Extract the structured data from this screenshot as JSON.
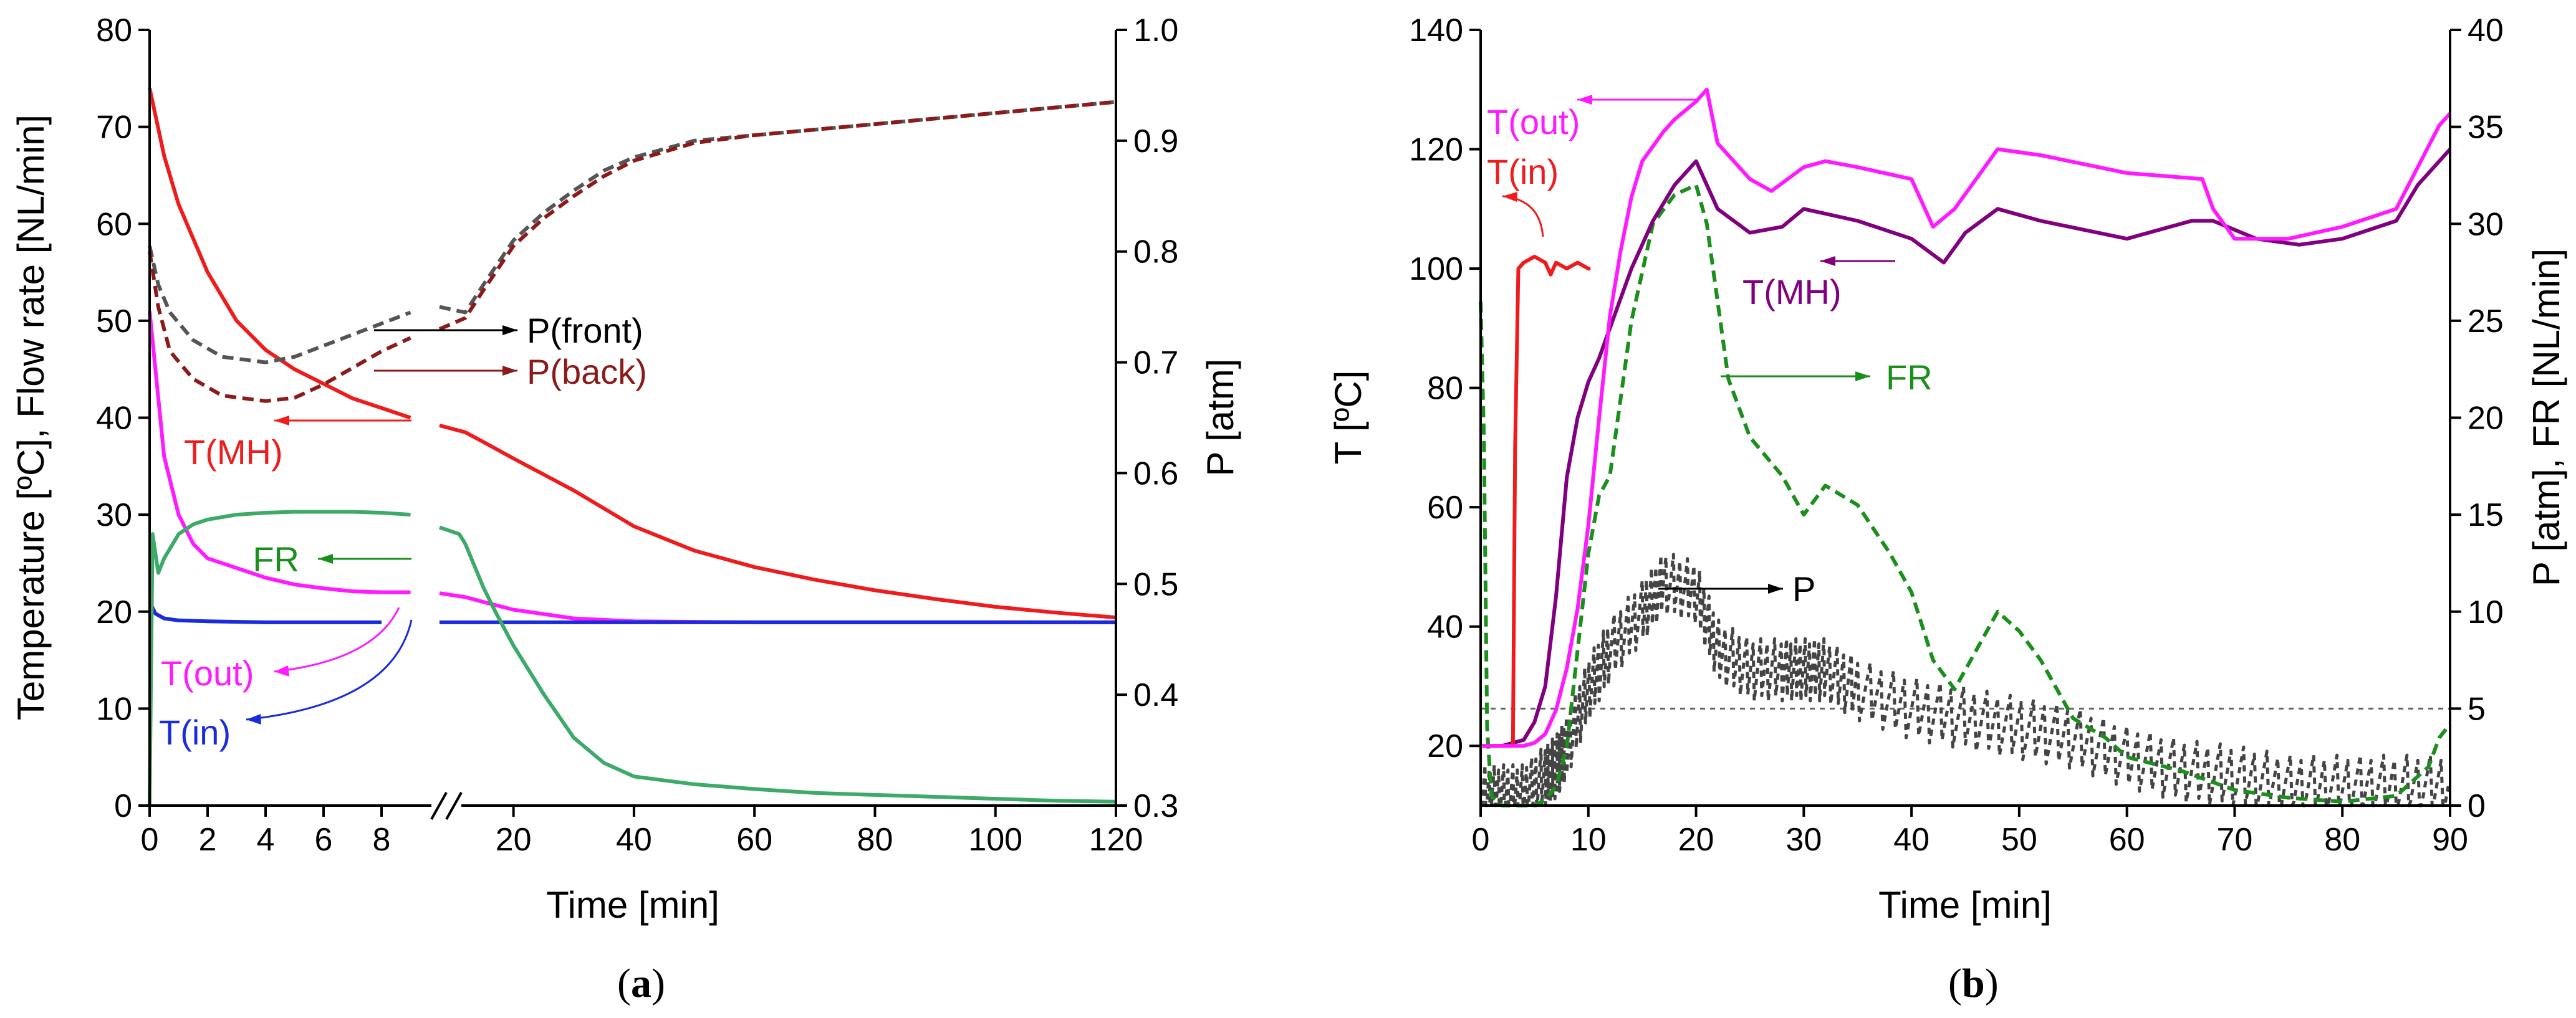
{
  "chart_data": [
    {
      "panel": "(a)",
      "panel_prefix": "(",
      "panel_letter": "a",
      "panel_suffix": ")",
      "type": "line",
      "xlabel": "Time [min]",
      "ylabel_left": "Temperature [ºC], Flow rate [NL/min]",
      "ylabel_right": "P [atm]",
      "x_axis": {
        "broken": true,
        "segment1": {
          "range": [
            0,
            10
          ],
          "ticks": [
            0,
            2,
            4,
            6,
            8
          ]
        },
        "segment2": {
          "range": [
            10,
            120
          ],
          "ticks": [
            20,
            40,
            60,
            80,
            100,
            120
          ]
        }
      },
      "ylim_left": [
        0,
        80
      ],
      "yticks_left": [
        0,
        10,
        20,
        30,
        40,
        50,
        60,
        70,
        80
      ],
      "ylim_right": [
        0.3,
        1.0
      ],
      "yticks_right": [
        "0.3",
        "0.4",
        "0.5",
        "0.6",
        "0.7",
        "0.8",
        "0.9",
        "1.0"
      ],
      "series": [
        {
          "name": "T(MH)",
          "axis": "left",
          "color": "#ee1c1c",
          "style": "solid",
          "x": [
            0,
            0.5,
            1,
            2,
            3,
            4,
            5,
            6,
            7,
            8,
            9,
            10,
            12,
            15,
            20,
            30,
            40,
            50,
            60,
            70,
            80,
            90,
            100,
            110,
            120
          ],
          "y": [
            74,
            67,
            62,
            55,
            50,
            47,
            45,
            43.5,
            42,
            41,
            40,
            39.2,
            38.5,
            37.5,
            35.8,
            32.5,
            28.8,
            26.3,
            24.6,
            23.3,
            22.2,
            21.3,
            20.5,
            19.9,
            19.4
          ]
        },
        {
          "name": "T(out)",
          "axis": "left",
          "color": "#ff1aff",
          "style": "solid",
          "x": [
            0,
            0.2,
            0.5,
            1,
            1.5,
            2,
            3,
            4,
            5,
            6,
            7,
            8,
            9,
            10,
            12,
            15,
            20,
            30,
            40,
            60,
            80,
            100,
            120
          ],
          "y": [
            51,
            45,
            36,
            30,
            27,
            25.5,
            24.5,
            23.5,
            22.8,
            22.4,
            22.1,
            22,
            22,
            21.9,
            21.5,
            21,
            20.2,
            19.3,
            19,
            18.9,
            18.9,
            18.9,
            18.9
          ]
        },
        {
          "name": "T(in)",
          "axis": "left",
          "color": "#1a2bdb",
          "style": "solid",
          "x": [
            0,
            0.2,
            0.5,
            1,
            2,
            4,
            6,
            8,
            10,
            20,
            40,
            60,
            80,
            100,
            120
          ],
          "y": [
            21,
            19.8,
            19.3,
            19.1,
            19,
            18.9,
            18.9,
            18.9,
            18.9,
            18.9,
            18.9,
            18.9,
            18.9,
            18.9,
            18.9
          ]
        },
        {
          "name": "FR",
          "axis": "left",
          "color": "#3daa6a",
          "style": "solid",
          "x": [
            0,
            0.1,
            0.3,
            0.5,
            1,
            1.5,
            2,
            3,
            4,
            5,
            6,
            7,
            8,
            9,
            10,
            11,
            12,
            13,
            14,
            15,
            17,
            20,
            25,
            30,
            35,
            40,
            50,
            60,
            70,
            80,
            90,
            100,
            110,
            120
          ],
          "y": [
            0,
            28,
            24,
            25.5,
            28,
            29,
            29.5,
            30,
            30.2,
            30.3,
            30.3,
            30.3,
            30.2,
            30,
            28.7,
            28,
            27,
            25.5,
            24,
            22.5,
            20,
            16.5,
            11.5,
            7,
            4.4,
            3,
            2.2,
            1.7,
            1.3,
            1.1,
            0.9,
            0.7,
            0.5,
            0.4
          ]
        },
        {
          "name": "P(front)",
          "axis": "right",
          "color": "#555555",
          "style": "dashed",
          "x": [
            0,
            0.3,
            0.7,
            1.5,
            2.5,
            4,
            5,
            6,
            7,
            8,
            9,
            10,
            12,
            15,
            20,
            25,
            30,
            35,
            40,
            50,
            60,
            70,
            80,
            90,
            100,
            110,
            120
          ],
          "y": [
            0.805,
            0.77,
            0.745,
            0.72,
            0.705,
            0.7,
            0.705,
            0.715,
            0.725,
            0.735,
            0.745,
            0.75,
            0.745,
            0.77,
            0.81,
            0.835,
            0.855,
            0.873,
            0.885,
            0.9,
            0.905,
            0.91,
            0.915,
            0.92,
            0.925,
            0.93,
            0.935
          ]
        },
        {
          "name": "P(back)",
          "axis": "right",
          "color": "#8b1a1a",
          "style": "dashed",
          "x": [
            0,
            0.3,
            0.7,
            1.5,
            2.5,
            4,
            5,
            6,
            7,
            8,
            9,
            10,
            12,
            15,
            20,
            25,
            30,
            35,
            40,
            50,
            60,
            70,
            80,
            90,
            100,
            110,
            120
          ],
          "y": [
            0.8,
            0.75,
            0.71,
            0.685,
            0.67,
            0.665,
            0.668,
            0.68,
            0.695,
            0.71,
            0.722,
            0.73,
            0.74,
            0.765,
            0.805,
            0.83,
            0.85,
            0.868,
            0.882,
            0.898,
            0.905,
            0.91,
            0.915,
            0.92,
            0.925,
            0.93,
            0.935
          ]
        }
      ],
      "annotations": [
        "P(front)",
        "P(back)",
        "T(MH)",
        "FR",
        "T(out)",
        "T(in)"
      ]
    },
    {
      "panel": "(b)",
      "panel_prefix": "(",
      "panel_letter": "b",
      "panel_suffix": ")",
      "type": "line",
      "xlabel": "Time [min]",
      "ylabel_left": "T [ºC]",
      "ylabel_right": "P [atm], FR [NL/min]",
      "xlim": [
        0,
        90
      ],
      "xticks": [
        0,
        10,
        20,
        30,
        40,
        50,
        60,
        70,
        80,
        90
      ],
      "ylim_left": [
        10,
        140
      ],
      "yticks_left": [
        20,
        40,
        60,
        80,
        100,
        120,
        140
      ],
      "ylim_right": [
        0,
        40
      ],
      "yticks_right": [
        0,
        5,
        10,
        15,
        20,
        25,
        30,
        35,
        40
      ],
      "reference_line": {
        "axis": "right",
        "value": 5,
        "style": "dotted"
      },
      "series": [
        {
          "name": "T(out)",
          "axis": "left",
          "color": "#ff1aff",
          "style": "solid",
          "x": [
            0,
            2,
            4,
            5,
            6,
            7,
            8,
            9,
            10,
            11,
            12,
            13,
            14,
            15,
            17,
            18,
            20,
            21,
            22,
            25,
            27,
            30,
            32,
            35,
            40,
            42,
            44,
            48,
            52,
            60,
            67,
            68,
            70,
            75,
            80,
            85,
            87,
            89,
            90
          ],
          "y": [
            20,
            20,
            20,
            20.5,
            22,
            26,
            33,
            43,
            57,
            75,
            92,
            103,
            112,
            118,
            123,
            125,
            128,
            130,
            121,
            115,
            113,
            117,
            118,
            117,
            115,
            107,
            110,
            120,
            119,
            116,
            115,
            110,
            105,
            105,
            107,
            110,
            117,
            124,
            126
          ]
        },
        {
          "name": "T(in)",
          "axis": "left",
          "color": "#ee1c1c",
          "style": "solid",
          "x": [
            0,
            2,
            3,
            3.2,
            3.5,
            4,
            5,
            6,
            6.5,
            7,
            8,
            9,
            10,
            10.2
          ],
          "y": [
            20,
            20,
            20,
            70,
            100,
            101,
            102,
            101,
            99,
            101,
            100,
            101,
            100,
            100
          ]
        },
        {
          "name": "T(MH)",
          "axis": "left",
          "color": "#800080",
          "style": "solid",
          "x": [
            0,
            2,
            4,
            5,
            6,
            7,
            8,
            9,
            10,
            11,
            12,
            14,
            16,
            18,
            20,
            22,
            25,
            28,
            30,
            35,
            40,
            43,
            45,
            48,
            52,
            60,
            66,
            68,
            72,
            76,
            80,
            85,
            87,
            90
          ],
          "y": [
            20,
            20,
            21,
            24,
            30,
            45,
            65,
            75,
            81,
            85,
            90,
            100,
            108,
            114,
            118,
            110,
            106,
            107,
            110,
            108,
            105,
            101,
            106,
            110,
            108,
            105,
            108,
            108,
            105,
            104,
            105,
            108,
            114,
            120
          ]
        },
        {
          "name": "FR",
          "axis": "right",
          "color": "#1b8f1b",
          "style": "dashed",
          "x": [
            0,
            0.3,
            0.6,
            1,
            2,
            3,
            4,
            5,
            6,
            7,
            8,
            9,
            10,
            11,
            12,
            14,
            16,
            18,
            20,
            21,
            22,
            23,
            25,
            28,
            30,
            32,
            35,
            38,
            40,
            42,
            44,
            46,
            48,
            50,
            52,
            55,
            58,
            60,
            65,
            70,
            75,
            80,
            85,
            88,
            89,
            90
          ],
          "y": [
            26,
            19,
            4,
            0.5,
            0,
            0,
            0,
            0,
            0.3,
            1,
            3,
            8,
            13,
            16,
            17,
            25,
            30,
            31.5,
            32,
            30,
            26,
            22,
            19,
            17,
            15,
            16.5,
            15.5,
            13,
            11,
            7.5,
            6,
            8,
            10,
            9,
            7.5,
            4.5,
            3.5,
            2.5,
            1.8,
            0.8,
            0.4,
            0.2,
            0.5,
            2,
            3.5,
            4.2
          ]
        },
        {
          "name": "P",
          "axis": "right",
          "color": "#444444",
          "style": "dashed-noisy",
          "x": [
            0,
            2,
            4,
            6,
            7,
            8,
            10,
            12,
            15,
            17,
            20,
            22,
            25,
            28,
            30,
            32,
            35,
            40,
            45,
            50,
            55,
            60,
            65,
            70,
            75,
            80,
            85,
            90
          ],
          "y": [
            0.5,
            0.5,
            0.5,
            1.5,
            2,
            3,
            6,
            8,
            10,
            11.5,
            11,
            8,
            7,
            7,
            7,
            7,
            6,
            5,
            4.5,
            4,
            3.5,
            2.5,
            1.8,
            1.5,
            1,
            1,
            1,
            1
          ]
        }
      ],
      "annotations": [
        "T(out)",
        "T(in)",
        "T(MH)",
        "FR",
        "P"
      ]
    }
  ]
}
